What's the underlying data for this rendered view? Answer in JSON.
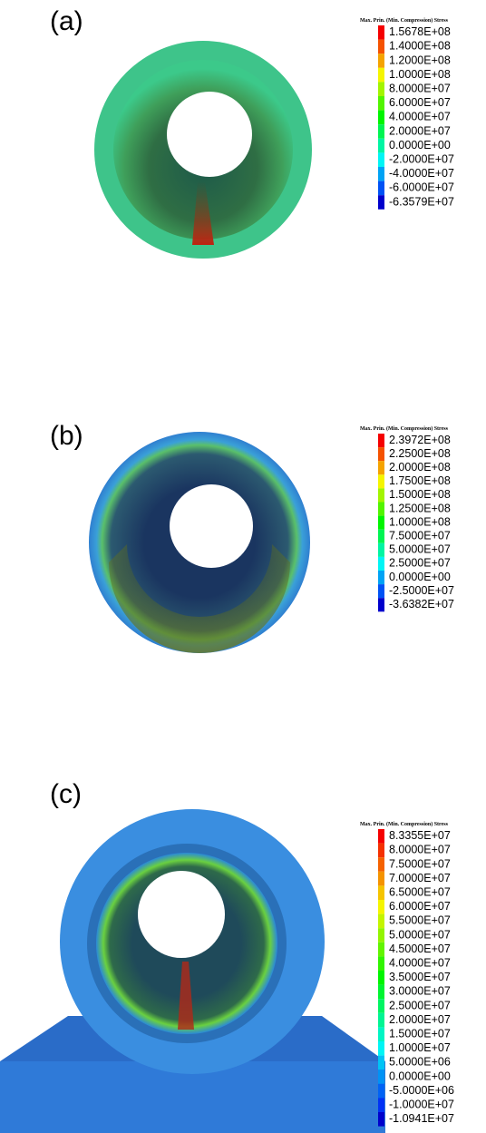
{
  "panels": [
    {
      "label": "(a)",
      "legend": {
        "title": "Max. Prin. (Min. Compression) Stress",
        "labels": [
          "1.5678E+08",
          "1.4000E+08",
          "1.2000E+08",
          "1.0000E+08",
          "8.0000E+07",
          "6.0000E+07",
          "4.0000E+07",
          "2.0000E+07",
          "0.0000E+00",
          "-2.0000E+07",
          "-4.0000E+07",
          "-6.0000E+07",
          "-6.3579E+07"
        ]
      }
    },
    {
      "label": "(b)",
      "legend": {
        "title": "Max. Prin. (Min. Compression) Stress",
        "labels": [
          "2.3972E+08",
          "2.2500E+08",
          "2.0000E+08",
          "1.7500E+08",
          "1.5000E+08",
          "1.2500E+08",
          "1.0000E+08",
          "7.5000E+07",
          "5.0000E+07",
          "2.5000E+07",
          "0.0000E+00",
          "-2.5000E+07",
          "-3.6382E+07"
        ]
      }
    },
    {
      "label": "(c)",
      "legend": {
        "title": "Max. Prin. (Min. Compression) Stress",
        "labels": [
          "8.3355E+07",
          "8.0000E+07",
          "7.5000E+07",
          "7.0000E+07",
          "6.5000E+07",
          "6.0000E+07",
          "5.5000E+07",
          "5.0000E+07",
          "4.5000E+07",
          "4.0000E+07",
          "3.5000E+07",
          "3.0000E+07",
          "2.5000E+07",
          "2.0000E+07",
          "1.5000E+07",
          "1.0000E+07",
          "5.0000E+06",
          "0.0000E+00",
          "-5.0000E+06",
          "-1.0000E+07",
          "-1.0941E+07"
        ]
      }
    }
  ]
}
